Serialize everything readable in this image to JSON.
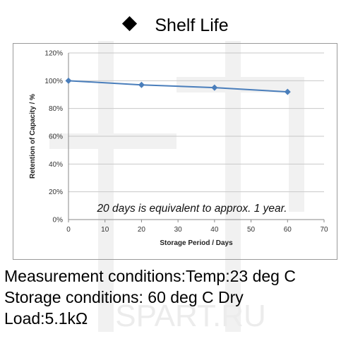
{
  "title": "Shelf Life",
  "chart_data": {
    "type": "line",
    "x": [
      0,
      20,
      40,
      60
    ],
    "series": [
      {
        "values": [
          100,
          97,
          95,
          92
        ]
      }
    ],
    "xlabel": "Storage Period / Days",
    "ylabel": "Retention of Capacity / %",
    "xlim": [
      0,
      70
    ],
    "ylim": [
      0,
      120
    ],
    "x_ticks": [
      "0",
      "10",
      "20",
      "30",
      "40",
      "50",
      "60",
      "70"
    ],
    "y_ticks": [
      "0%",
      "20%",
      "40%",
      "60%",
      "80%",
      "100%",
      "120%"
    ],
    "grid": "horizontal",
    "line_color": "#4a7ebb",
    "annotation": "20 days is equivalent to approx. 1 year."
  },
  "conditions": {
    "measurement": "Measurement conditions:Temp:23 deg C",
    "storage": "Storage conditions: 60 deg C Dry",
    "load": "Load:5.1kΩ"
  },
  "watermark": "SPART.RU"
}
